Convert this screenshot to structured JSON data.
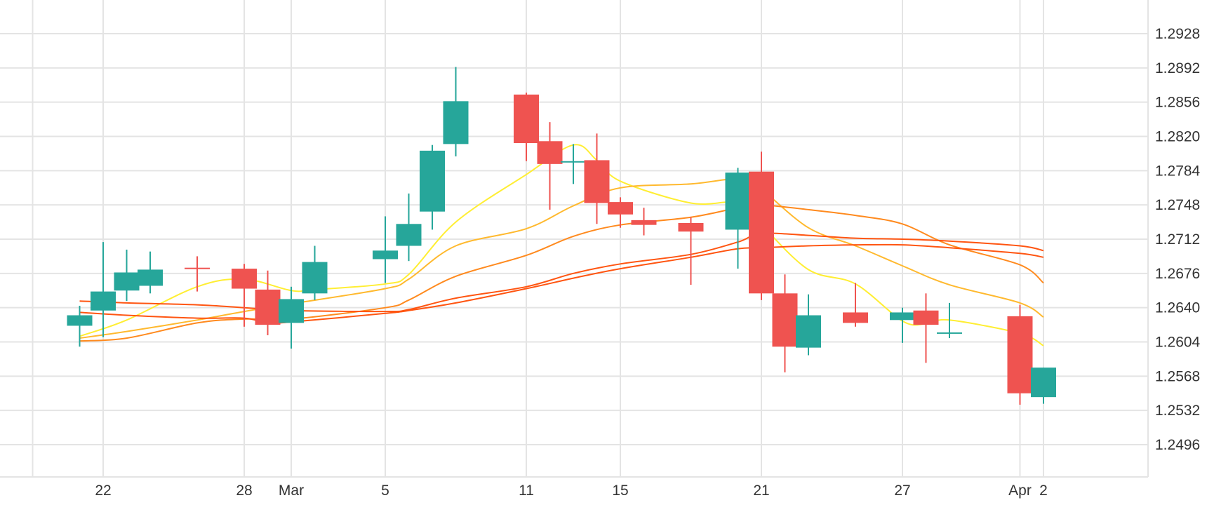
{
  "chart_data": {
    "type": "candlestick",
    "title": "",
    "xlabel": "",
    "ylabel": "",
    "ylim": [
      1.2456,
      1.2964
    ],
    "y_ticks": [
      1.2928,
      1.2892,
      1.2856,
      1.282,
      1.2784,
      1.2748,
      1.2712,
      1.2676,
      1.264,
      1.2604,
      1.2568,
      1.2532,
      1.2496
    ],
    "y_tick_labels": [
      "1.2928",
      "1.2892",
      "1.2856",
      "1.2820",
      "1.2784",
      "1.2748",
      "1.2712",
      "1.2676",
      "1.2640",
      "1.2604",
      "1.2568",
      "1.2532",
      "1.2496"
    ],
    "y_axis_position": "right",
    "x_tick_labels": [
      {
        "label": "22",
        "date": "2024-02-22"
      },
      {
        "label": "28",
        "date": "2024-02-28"
      },
      {
        "label": "Mar",
        "date": "2024-03-01"
      },
      {
        "label": "5",
        "date": "2024-03-05"
      },
      {
        "label": "11",
        "date": "2024-03-11"
      },
      {
        "label": "15",
        "date": "2024-03-15"
      },
      {
        "label": "21",
        "date": "2024-03-21"
      },
      {
        "label": "27",
        "date": "2024-03-27"
      },
      {
        "label": "Apr",
        "date": "2024-04-01"
      },
      {
        "label": "2",
        "date": "2024-04-02"
      }
    ],
    "extra_vertical_gridlines": [
      "2024-02-19"
    ],
    "grid": true,
    "colors": {
      "up": "#26a69a",
      "down": "#ef5350",
      "grid": "#e4e4e4",
      "ma_1": "#ffee33",
      "ma_2": "#ffb92e",
      "ma_3": "#ff8a1e",
      "ma_4": "#ff5511"
    },
    "candles": [
      {
        "date": "2024-02-21",
        "open": 1.2621,
        "high": 1.2642,
        "low": 1.2599,
        "close": 1.2632
      },
      {
        "date": "2024-02-22",
        "open": 1.2637,
        "high": 1.2709,
        "low": 1.2609,
        "close": 1.2657
      },
      {
        "date": "2024-02-23",
        "open": 1.2658,
        "high": 1.2701,
        "low": 1.2647,
        "close": 1.2677
      },
      {
        "date": "2024-02-24",
        "open": 1.2663,
        "high": 1.2699,
        "low": 1.2655,
        "close": 1.268
      },
      {
        "date": "2024-02-26",
        "open": 1.2682,
        "high": 1.2694,
        "low": 1.2657,
        "close": 1.2681
      },
      {
        "date": "2024-02-28",
        "open": 1.2681,
        "high": 1.2686,
        "low": 1.262,
        "close": 1.266
      },
      {
        "date": "2024-02-29",
        "open": 1.2659,
        "high": 1.2679,
        "low": 1.2611,
        "close": 1.2622
      },
      {
        "date": "2024-03-01",
        "open": 1.2624,
        "high": 1.2662,
        "low": 1.2597,
        "close": 1.2649
      },
      {
        "date": "2024-03-02",
        "open": 1.2655,
        "high": 1.2705,
        "low": 1.2648,
        "close": 1.2688
      },
      {
        "date": "2024-03-05",
        "open": 1.2691,
        "high": 1.2736,
        "low": 1.2666,
        "close": 1.27
      },
      {
        "date": "2024-03-06",
        "open": 1.2705,
        "high": 1.276,
        "low": 1.2689,
        "close": 1.2728
      },
      {
        "date": "2024-03-07",
        "open": 1.2741,
        "high": 1.2811,
        "low": 1.2722,
        "close": 1.2805
      },
      {
        "date": "2024-03-08",
        "open": 1.2812,
        "high": 1.2893,
        "low": 1.2799,
        "close": 1.2857
      },
      {
        "date": "2024-03-11",
        "open": 1.2864,
        "high": 1.2866,
        "low": 1.2794,
        "close": 1.2813
      },
      {
        "date": "2024-03-12",
        "open": 1.2815,
        "high": 1.2835,
        "low": 1.2743,
        "close": 1.2791
      },
      {
        "date": "2024-03-13",
        "open": 1.2793,
        "high": 1.2812,
        "low": 1.277,
        "close": 1.2794
      },
      {
        "date": "2024-03-14",
        "open": 1.2795,
        "high": 1.2823,
        "low": 1.2728,
        "close": 1.275
      },
      {
        "date": "2024-03-15",
        "open": 1.2751,
        "high": 1.2756,
        "low": 1.2724,
        "close": 1.2738
      },
      {
        "date": "2024-03-16",
        "open": 1.2732,
        "high": 1.2745,
        "low": 1.2716,
        "close": 1.2727
      },
      {
        "date": "2024-03-18",
        "open": 1.2729,
        "high": 1.2735,
        "low": 1.2664,
        "close": 1.272
      },
      {
        "date": "2024-03-20",
        "open": 1.2722,
        "high": 1.2787,
        "low": 1.2681,
        "close": 1.2782
      },
      {
        "date": "2024-03-21",
        "open": 1.2783,
        "high": 1.2804,
        "low": 1.2648,
        "close": 1.2655
      },
      {
        "date": "2024-03-22",
        "open": 1.2655,
        "high": 1.2675,
        "low": 1.2572,
        "close": 1.2599
      },
      {
        "date": "2024-03-23",
        "open": 1.2598,
        "high": 1.2654,
        "low": 1.259,
        "close": 1.2632
      },
      {
        "date": "2024-03-25",
        "open": 1.2635,
        "high": 1.2666,
        "low": 1.262,
        "close": 1.2624
      },
      {
        "date": "2024-03-27",
        "open": 1.2627,
        "high": 1.264,
        "low": 1.2603,
        "close": 1.2635
      },
      {
        "date": "2024-03-28",
        "open": 1.2637,
        "high": 1.2655,
        "low": 1.2582,
        "close": 1.2622
      },
      {
        "date": "2024-03-29",
        "open": 1.2614,
        "high": 1.2645,
        "low": 1.2608,
        "close": 1.2614
      },
      {
        "date": "2024-04-01",
        "open": 1.2631,
        "high": 1.2643,
        "low": 1.2538,
        "close": 1.255
      },
      {
        "date": "2024-04-02",
        "open": 1.2546,
        "high": 1.2577,
        "low": 1.2539,
        "close": 1.2577
      }
    ],
    "moving_averages": [
      {
        "values": [
          [
            "2024-02-21",
            1.261
          ],
          [
            "2024-02-23",
            1.2627
          ],
          [
            "2024-02-26",
            1.2662
          ],
          [
            "2024-02-28",
            1.267
          ],
          [
            "2024-03-01",
            1.2658
          ],
          [
            "2024-03-02",
            1.2659
          ],
          [
            "2024-03-05",
            1.2665
          ],
          [
            "2024-03-06",
            1.2675
          ],
          [
            "2024-03-08",
            1.273
          ],
          [
            "2024-03-11",
            1.278
          ],
          [
            "2024-03-13",
            1.2811
          ],
          [
            "2024-03-14",
            1.2795
          ],
          [
            "2024-03-15",
            1.2773
          ],
          [
            "2024-03-18",
            1.275
          ],
          [
            "2024-03-20",
            1.275
          ],
          [
            "2024-03-21",
            1.2727
          ],
          [
            "2024-03-23",
            1.268
          ],
          [
            "2024-03-25",
            1.2665
          ],
          [
            "2024-03-27",
            1.2626
          ],
          [
            "2024-03-28",
            1.2623
          ],
          [
            "2024-03-29",
            1.2627
          ],
          [
            "2024-04-01",
            1.2613
          ],
          [
            "2024-04-02",
            1.26
          ]
        ]
      },
      {
        "values": [
          [
            "2024-02-21",
            1.2608
          ],
          [
            "2024-02-23",
            1.2615
          ],
          [
            "2024-02-26",
            1.2627
          ],
          [
            "2024-02-28",
            1.2636
          ],
          [
            "2024-03-01",
            1.2644
          ],
          [
            "2024-03-05",
            1.266
          ],
          [
            "2024-03-06",
            1.267
          ],
          [
            "2024-03-08",
            1.2705
          ],
          [
            "2024-03-11",
            1.2723
          ],
          [
            "2024-03-13",
            1.2747
          ],
          [
            "2024-03-15",
            1.2766
          ],
          [
            "2024-03-18",
            1.277
          ],
          [
            "2024-03-20",
            1.2775
          ],
          [
            "2024-03-21",
            1.2764
          ],
          [
            "2024-03-23",
            1.2724
          ],
          [
            "2024-03-25",
            1.2705
          ],
          [
            "2024-03-27",
            1.2684
          ],
          [
            "2024-03-29",
            1.2664
          ],
          [
            "2024-04-01",
            1.2645
          ],
          [
            "2024-04-02",
            1.263
          ]
        ]
      },
      {
        "values": [
          [
            "2024-02-21",
            1.2605
          ],
          [
            "2024-02-23",
            1.2608
          ],
          [
            "2024-02-26",
            1.2624
          ],
          [
            "2024-02-28",
            1.2628
          ],
          [
            "2024-03-01",
            1.2628
          ],
          [
            "2024-03-05",
            1.264
          ],
          [
            "2024-03-06",
            1.2648
          ],
          [
            "2024-03-08",
            1.2673
          ],
          [
            "2024-03-11",
            1.2695
          ],
          [
            "2024-03-13",
            1.2715
          ],
          [
            "2024-03-15",
            1.2727
          ],
          [
            "2024-03-18",
            1.2735
          ],
          [
            "2024-03-20",
            1.2745
          ],
          [
            "2024-03-21",
            1.2748
          ],
          [
            "2024-03-23",
            1.2743
          ],
          [
            "2024-03-25",
            1.2737
          ],
          [
            "2024-03-27",
            1.2728
          ],
          [
            "2024-03-29",
            1.2706
          ],
          [
            "2024-04-01",
            1.2685
          ],
          [
            "2024-04-02",
            1.2666
          ]
        ]
      },
      {
        "values": [
          [
            "2024-02-21",
            1.2647
          ],
          [
            "2024-02-23",
            1.2645
          ],
          [
            "2024-02-26",
            1.2643
          ],
          [
            "2024-02-28",
            1.264
          ],
          [
            "2024-03-01",
            1.2637
          ],
          [
            "2024-03-05",
            1.2636
          ],
          [
            "2024-03-06",
            1.2638
          ],
          [
            "2024-03-08",
            1.265
          ],
          [
            "2024-03-11",
            1.2662
          ],
          [
            "2024-03-13",
            1.2676
          ],
          [
            "2024-03-15",
            1.2686
          ],
          [
            "2024-03-18",
            1.2696
          ],
          [
            "2024-03-20",
            1.2709
          ],
          [
            "2024-03-21",
            1.2718
          ],
          [
            "2024-03-23",
            1.2716
          ],
          [
            "2024-03-25",
            1.2713
          ],
          [
            "2024-03-27",
            1.2712
          ],
          [
            "2024-03-29",
            1.271
          ],
          [
            "2024-04-01",
            1.2705
          ],
          [
            "2024-04-02",
            1.27
          ]
        ]
      },
      {
        "values": [
          [
            "2024-02-21",
            1.2635
          ],
          [
            "2024-02-23",
            1.2632
          ],
          [
            "2024-02-26",
            1.2629
          ],
          [
            "2024-02-28",
            1.2629
          ],
          [
            "2024-02-29",
            1.2624
          ],
          [
            "2024-03-01",
            1.2625
          ],
          [
            "2024-03-05",
            1.2634
          ],
          [
            "2024-03-06",
            1.2637
          ],
          [
            "2024-03-08",
            1.2645
          ],
          [
            "2024-03-11",
            1.266
          ],
          [
            "2024-03-13",
            1.2671
          ],
          [
            "2024-03-15",
            1.2681
          ],
          [
            "2024-03-18",
            1.2693
          ],
          [
            "2024-03-20",
            1.2702
          ],
          [
            "2024-03-21",
            1.2703
          ],
          [
            "2024-03-23",
            1.2705
          ],
          [
            "2024-03-25",
            1.2706
          ],
          [
            "2024-03-27",
            1.2706
          ],
          [
            "2024-03-29",
            1.2703
          ],
          [
            "2024-04-01",
            1.2697
          ],
          [
            "2024-04-02",
            1.2693
          ]
        ]
      }
    ]
  }
}
